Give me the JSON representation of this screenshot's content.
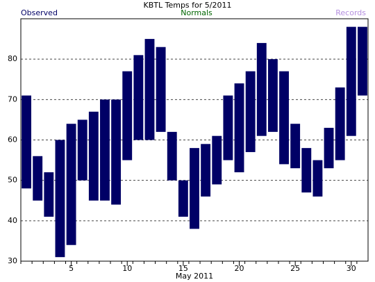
{
  "chart_data": {
    "type": "range-bar",
    "title": "KBTL Temps for 5/2011",
    "x_label": "May 2011",
    "x": [
      1,
      2,
      3,
      4,
      5,
      6,
      7,
      8,
      9,
      10,
      11,
      12,
      13,
      14,
      15,
      16,
      17,
      18,
      19,
      20,
      21,
      22,
      23,
      24,
      25,
      26,
      27,
      28,
      29,
      30,
      31
    ],
    "xlim": [
      0.5,
      31.5
    ],
    "xticks": [
      5,
      10,
      15,
      20,
      25,
      30
    ],
    "ylim": [
      30,
      90
    ],
    "yticks": [
      30,
      40,
      50,
      60,
      70,
      80
    ],
    "grid": true,
    "series": [
      {
        "name": "Observed",
        "color": "#000066",
        "low": [
          48,
          45,
          41,
          31,
          34,
          50,
          45,
          45,
          44,
          55,
          60,
          60,
          62,
          50,
          41,
          38,
          46,
          49,
          55,
          52,
          57,
          61,
          62,
          54,
          53,
          47,
          46,
          53,
          55,
          61,
          71
        ],
        "high": [
          71,
          56,
          52,
          60,
          64,
          65,
          67,
          70,
          70,
          77,
          81,
          85,
          83,
          62,
          50,
          58,
          59,
          61,
          71,
          74,
          77,
          84,
          80,
          77,
          64,
          58,
          55,
          63,
          73,
          88,
          88
        ]
      }
    ],
    "legend": [
      {
        "name": "Normals",
        "color": "#006600"
      },
      {
        "name": "Records",
        "color": "#b58fe0"
      }
    ]
  }
}
